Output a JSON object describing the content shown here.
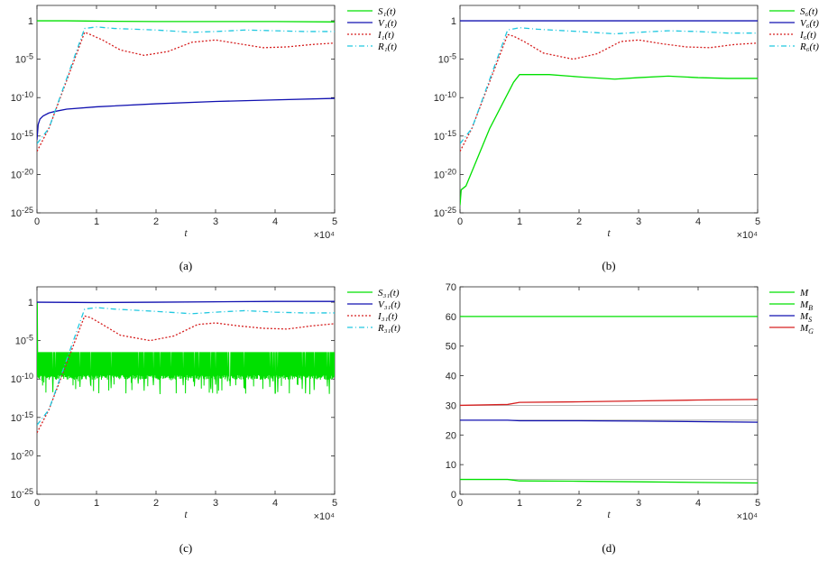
{
  "colors": {
    "green": "#00e000",
    "blue": "#1010b0",
    "red": "#d62020",
    "cyan": "#20c8e0",
    "gray": "#8a8a8a"
  },
  "chart_data": [
    {
      "type": "line",
      "caption": "(a)",
      "xlabel": "t",
      "xexp": "×10⁴",
      "xlim": [
        0,
        5
      ],
      "xticks": [
        0,
        1,
        2,
        3,
        4,
        5
      ],
      "yscale": "log",
      "ylim": [
        -25,
        2
      ],
      "yticks": [
        {
          "v": 0,
          "l": "1"
        },
        {
          "v": -5,
          "l": "10-5"
        },
        {
          "v": -10,
          "l": "10-10"
        },
        {
          "v": -15,
          "l": "10-15"
        },
        {
          "v": -20,
          "l": "10-20"
        },
        {
          "v": -25,
          "l": "10-25"
        }
      ],
      "legend": "top-right",
      "series": [
        {
          "name": "S₁(t)",
          "color": "green",
          "dash": "",
          "x": [
            0,
            0.5,
            1,
            2,
            3,
            4,
            5
          ],
          "y": [
            0,
            0,
            -0.05,
            -0.1,
            -0.1,
            -0.1,
            -0.15
          ]
        },
        {
          "name": "V₁(t)",
          "color": "blue",
          "dash": "",
          "x": [
            0,
            0.02,
            0.05,
            0.1,
            0.2,
            0.3,
            0.5,
            1,
            2,
            3,
            4,
            5
          ],
          "y": [
            -15.5,
            -13.5,
            -12.8,
            -12.4,
            -12,
            -11.8,
            -11.5,
            -11.2,
            -10.8,
            -10.5,
            -10.3,
            -10.1
          ]
        },
        {
          "name": "I₁(t)",
          "color": "red",
          "dash": "2,2",
          "x": [
            0,
            0.2,
            0.8,
            0.9,
            1.1,
            1.4,
            1.8,
            2.2,
            2.6,
            3,
            3.4,
            3.8,
            4.2,
            4.6,
            5
          ],
          "y": [
            -17,
            -14,
            -1.5,
            -1.8,
            -2.5,
            -3.8,
            -4.5,
            -4,
            -2.8,
            -2.5,
            -3,
            -3.5,
            -3.4,
            -3.1,
            -2.9
          ]
        },
        {
          "name": "R₁(t)",
          "color": "cyan",
          "dash": "6,3,1,3",
          "x": [
            0,
            0.2,
            0.8,
            1,
            1.3,
            2,
            2.6,
            3,
            3.5,
            4,
            4.5,
            5
          ],
          "y": [
            -16,
            -14,
            -1,
            -0.8,
            -1,
            -1.2,
            -1.5,
            -1.4,
            -1.2,
            -1.3,
            -1.4,
            -1.4
          ]
        }
      ]
    },
    {
      "type": "line",
      "caption": "(b)",
      "xlabel": "t",
      "xexp": "×10⁴",
      "xlim": [
        0,
        5
      ],
      "xticks": [
        0,
        1,
        2,
        3,
        4,
        5
      ],
      "yscale": "log",
      "ylim": [
        -25,
        2
      ],
      "yticks": [
        {
          "v": 0,
          "l": "1"
        },
        {
          "v": -5,
          "l": "10-5"
        },
        {
          "v": -10,
          "l": "10-10"
        },
        {
          "v": -15,
          "l": "10-15"
        },
        {
          "v": -20,
          "l": "10-20"
        },
        {
          "v": -25,
          "l": "10-25"
        }
      ],
      "legend": "top-right",
      "series": [
        {
          "name": "S₆(t)",
          "color": "green",
          "dash": "",
          "x": [
            0,
            0.02,
            0.1,
            0.5,
            0.9,
            1,
            1.5,
            2,
            2.6,
            3,
            3.5,
            4,
            4.5,
            5
          ],
          "y": [
            -24,
            -22,
            -21.5,
            -14,
            -8,
            -7,
            -7,
            -7.3,
            -7.6,
            -7.4,
            -7.2,
            -7.4,
            -7.5,
            -7.5
          ]
        },
        {
          "name": "V₆(t)",
          "color": "blue",
          "dash": "",
          "x": [
            0,
            1,
            2,
            3,
            4,
            5
          ],
          "y": [
            0,
            0,
            0,
            0,
            0,
            0
          ]
        },
        {
          "name": "I₆(t)",
          "color": "red",
          "dash": "2,2",
          "x": [
            0,
            0.2,
            0.8,
            0.9,
            1.1,
            1.4,
            1.9,
            2.3,
            2.7,
            3,
            3.4,
            3.8,
            4.2,
            4.6,
            5
          ],
          "y": [
            -17,
            -14,
            -1.8,
            -2,
            -2.8,
            -4.2,
            -5,
            -4.3,
            -2.7,
            -2.5,
            -3,
            -3.4,
            -3.5,
            -3.1,
            -2.9
          ]
        },
        {
          "name": "R₆(t)",
          "color": "cyan",
          "dash": "6,3,1,3",
          "x": [
            0,
            0.2,
            0.8,
            1,
            1.3,
            2,
            2.6,
            3,
            3.5,
            4,
            4.5,
            5
          ],
          "y": [
            -16,
            -14,
            -1.2,
            -0.9,
            -1.1,
            -1.4,
            -1.7,
            -1.5,
            -1.3,
            -1.4,
            -1.6,
            -1.6
          ]
        }
      ]
    },
    {
      "type": "line",
      "caption": "(c)",
      "xlabel": "t",
      "xexp": "×10⁴",
      "xlim": [
        0,
        5
      ],
      "xticks": [
        0,
        1,
        2,
        3,
        4,
        5
      ],
      "yscale": "log",
      "ylim": [
        -25,
        2
      ],
      "yticks": [
        {
          "v": 0,
          "l": "1"
        },
        {
          "v": -5,
          "l": "10-5"
        },
        {
          "v": -10,
          "l": "10-10"
        },
        {
          "v": -15,
          "l": "10-15"
        },
        {
          "v": -20,
          "l": "10-20"
        },
        {
          "v": -25,
          "l": "10-25"
        }
      ],
      "legend": "top-right",
      "series": [
        {
          "name": "S₃₁(t)",
          "color": "green",
          "dash": "",
          "noise": [
            -6.5,
            -9.5,
            -11.5
          ],
          "x": [
            0,
            0.005,
            0.01
          ],
          "y": [
            -5,
            0,
            -6.5
          ]
        },
        {
          "name": "V₃₁(t)",
          "color": "blue",
          "dash": "",
          "x": [
            0,
            1,
            2,
            3,
            4,
            5
          ],
          "y": [
            0,
            -0.05,
            0,
            0.05,
            0.1,
            0.1
          ]
        },
        {
          "name": "I₃₁(t)",
          "color": "red",
          "dash": "2,2",
          "x": [
            0,
            0.2,
            0.8,
            0.9,
            1.1,
            1.4,
            1.9,
            2.3,
            2.7,
            3,
            3.4,
            3.8,
            4.2,
            4.6,
            5
          ],
          "y": [
            -17,
            -14,
            -1.8,
            -2,
            -2.9,
            -4.3,
            -5,
            -4.4,
            -2.9,
            -2.7,
            -3.1,
            -3.4,
            -3.5,
            -3.1,
            -2.8
          ]
        },
        {
          "name": "R₃₁(t)",
          "color": "cyan",
          "dash": "6,3,1,3",
          "x": [
            0,
            0.2,
            0.8,
            1,
            1.3,
            2,
            2.6,
            3,
            3.5,
            4,
            4.5,
            5
          ],
          "y": [
            -16,
            -14,
            -0.9,
            -0.7,
            -0.9,
            -1.2,
            -1.5,
            -1.3,
            -1.1,
            -1.3,
            -1.4,
            -1.4
          ]
        }
      ]
    },
    {
      "type": "line",
      "caption": "(d)",
      "xlabel": "t",
      "xexp": "×10⁴",
      "xlim": [
        0,
        5
      ],
      "xticks": [
        0,
        1,
        2,
        3,
        4,
        5
      ],
      "yscale": "linear",
      "ylim": [
        0,
        70
      ],
      "yticks": [
        {
          "v": 0,
          "l": "0"
        },
        {
          "v": 10,
          "l": "10"
        },
        {
          "v": 20,
          "l": "20"
        },
        {
          "v": 30,
          "l": "30"
        },
        {
          "v": 40,
          "l": "40"
        },
        {
          "v": 50,
          "l": "50"
        },
        {
          "v": 60,
          "l": "60"
        },
        {
          "v": 70,
          "l": "70"
        }
      ],
      "legend": "top-right",
      "reference_lines": [
        5,
        25,
        30
      ],
      "series": [
        {
          "name": "M",
          "color": "green",
          "dash": "",
          "x": [
            0,
            0.8,
            1,
            2,
            3,
            4,
            5
          ],
          "y": [
            5,
            5,
            4.5,
            4.4,
            4.2,
            4,
            3.8
          ]
        },
        {
          "name": "M_B",
          "color": "green",
          "dash": "",
          "x": [
            0,
            1,
            2,
            3,
            4,
            5
          ],
          "y": [
            60,
            60,
            60,
            60,
            60,
            60
          ]
        },
        {
          "name": "M_S",
          "color": "blue",
          "dash": "",
          "x": [
            0,
            0.8,
            1,
            2,
            3,
            4,
            5
          ],
          "y": [
            25,
            25,
            24.8,
            24.8,
            24.7,
            24.5,
            24.3
          ]
        },
        {
          "name": "M_G",
          "color": "red",
          "dash": "",
          "x": [
            0,
            0.8,
            1,
            2,
            3,
            4,
            5
          ],
          "y": [
            30,
            30.3,
            31,
            31.2,
            31.5,
            31.8,
            32
          ]
        }
      ]
    }
  ]
}
